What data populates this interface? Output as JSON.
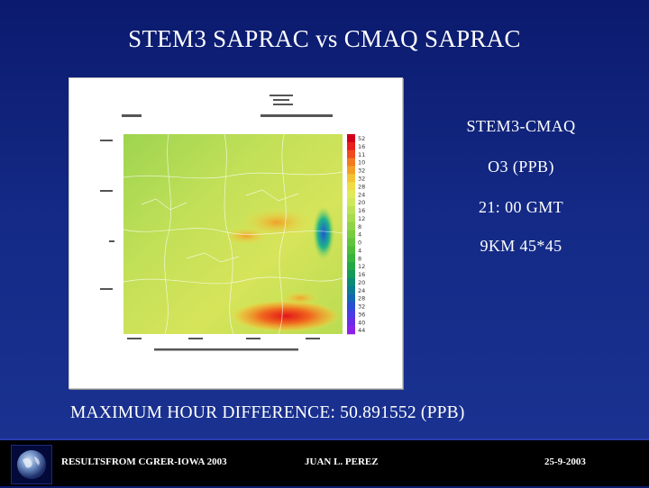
{
  "slide": {
    "title": "STEM3 SAPRAC vs CMAQ SAPRAC",
    "info_lines": [
      "STEM3-CMAQ",
      "O3 (PPB)",
      "21: 00 GMT",
      "9KM 45*45"
    ],
    "max_difference": "MAXIMUM HOUR DIFFERENCE: 50.891552   (PPB)"
  },
  "footer": {
    "left": "RESULTSFROM CGRER-IOWA 2003",
    "center": "JUAN L. PEREZ",
    "right": "25-9-2003",
    "logo_icon": "globe-icon"
  },
  "map": {
    "colorbar_labels": [
      "52",
      "16",
      "11",
      "10",
      "32",
      "32",
      "28",
      "24",
      "20",
      "16",
      "12",
      "8",
      "4",
      "0",
      "4",
      "8",
      "12",
      "16",
      "20",
      "24",
      "28",
      "32",
      "36",
      "40",
      "44"
    ],
    "colorbar_colors": [
      "#d00018",
      "#e8201c",
      "#f04a1e",
      "#f27a20",
      "#f3a028",
      "#f2c434",
      "#eedd48",
      "#e0ea58",
      "#cfe85c",
      "#bbe256",
      "#a6dc4e",
      "#8fd446",
      "#78cc40",
      "#62c43c",
      "#4cbc3a",
      "#36b43c",
      "#22a844",
      "#129a58",
      "#0c8a74",
      "#0c7a92",
      "#1466b2",
      "#2a4ed2",
      "#4a3ce2",
      "#6a2ce8",
      "#8c20e8"
    ]
  }
}
